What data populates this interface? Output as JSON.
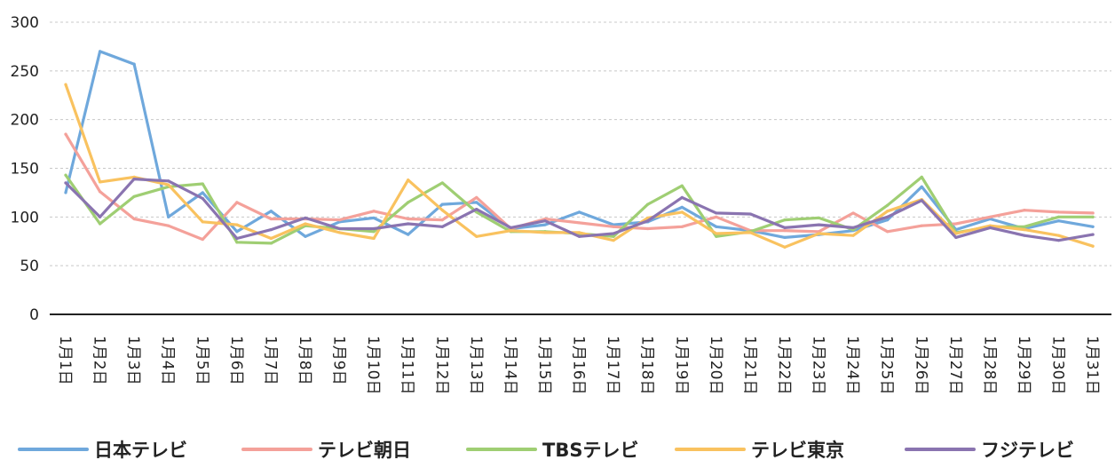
{
  "chart_data": {
    "type": "line",
    "title": "",
    "xlabel": "",
    "ylabel": "",
    "ylim": [
      0,
      300
    ],
    "yticks": [
      0,
      50,
      100,
      150,
      200,
      250,
      300
    ],
    "grid": true,
    "legend_position": "bottom",
    "categories": [
      "1月1日",
      "1月2日",
      "1月3日",
      "1月4日",
      "1月5日",
      "1月6日",
      "1月7日",
      "1月8日",
      "1月9日",
      "1月10日",
      "1月11日",
      "1月12日",
      "1月13日",
      "1月14日",
      "1月15日",
      "1月16日",
      "1月17日",
      "1月18日",
      "1月19日",
      "1月20日",
      "1月21日",
      "1月22日",
      "1月23日",
      "1月24日",
      "1月25日",
      "1月26日",
      "1月27日",
      "1月28日",
      "1月29日",
      "1月30日",
      "1月31日"
    ],
    "series": [
      {
        "name": "日本テレビ",
        "color": "#6fa8dc",
        "values": [
          125,
          270,
          257,
          100,
          125,
          85,
          106,
          80,
          95,
          99,
          82,
          113,
          115,
          88,
          92,
          105,
          92,
          95,
          110,
          90,
          86,
          79,
          82,
          86,
          97,
          131,
          87,
          98,
          88,
          96,
          90
        ]
      },
      {
        "name": "テレビ朝日",
        "color": "#f4a19a",
        "values": [
          185,
          126,
          98,
          91,
          77,
          115,
          98,
          98,
          97,
          106,
          98,
          97,
          120,
          88,
          98,
          94,
          90,
          88,
          90,
          100,
          86,
          86,
          85,
          104,
          85,
          91,
          93,
          100,
          107,
          105,
          104
        ]
      },
      {
        "name": "TBSテレビ",
        "color": "#9fce73",
        "values": [
          143,
          93,
          121,
          131,
          134,
          74,
          73,
          91,
          88,
          85,
          115,
          135,
          105,
          85,
          85,
          83,
          80,
          113,
          132,
          80,
          85,
          97,
          99,
          87,
          112,
          141,
          84,
          90,
          90,
          100,
          100
        ]
      },
      {
        "name": "テレビ東京",
        "color": "#f9c25f",
        "values": [
          236,
          136,
          141,
          133,
          95,
          92,
          78,
          93,
          84,
          78,
          138,
          107,
          80,
          86,
          84,
          84,
          76,
          99,
          105,
          83,
          84,
          69,
          83,
          81,
          106,
          118,
          83,
          91,
          87,
          81,
          70
        ]
      },
      {
        "name": "フジテレビ",
        "color": "#8a74b0",
        "values": [
          135,
          100,
          139,
          137,
          119,
          78,
          87,
          99,
          88,
          88,
          93,
          90,
          108,
          89,
          96,
          80,
          83,
          96,
          120,
          104,
          103,
          89,
          92,
          89,
          100,
          117,
          79,
          89,
          81,
          76,
          82
        ]
      }
    ]
  }
}
